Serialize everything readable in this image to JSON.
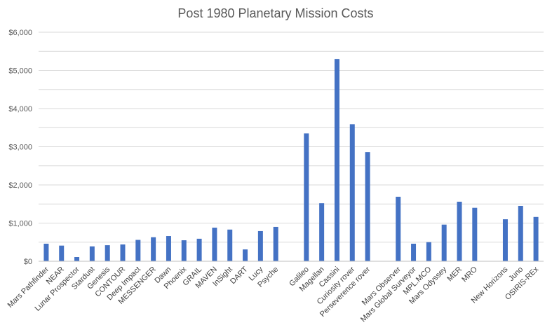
{
  "chart_data": {
    "type": "bar",
    "title": "Post 1980 Planetary Mission Costs",
    "xlabel": "",
    "ylabel": "",
    "ylim": [
      0,
      6000
    ],
    "yticks": [
      0,
      1000,
      2000,
      3000,
      4000,
      5000,
      6000
    ],
    "ytick_labels": [
      "$0",
      "$1,000",
      "$2,000",
      "$3,000",
      "$4,000",
      "$5,000",
      "$6,000"
    ],
    "grid": true,
    "legend": "none",
    "bar_color": "#4472c4",
    "categories": [
      "Mars Pathfinder",
      "NEAR",
      "Lunar Prospector",
      "Stardust",
      "Genesis",
      "CONTOUR",
      "Deep Impact",
      "MESSENGER",
      "Dawn",
      "Phoenix",
      "GRAIL",
      "MAVEN",
      "InSight",
      "DART",
      "Lucy",
      "Psyche",
      "",
      "Galileo",
      "Magellan",
      "Cassini",
      "Curiosity rover",
      "Perseverence rover",
      "",
      "Mars Observer",
      "Mars Global Surveyor",
      "MPL.MCO",
      "Mars Odyssey",
      "MER",
      "MRO",
      "",
      "New Horizons",
      "Juno",
      "OSIRIS-REx"
    ],
    "values": [
      460,
      410,
      110,
      390,
      420,
      440,
      560,
      630,
      660,
      550,
      590,
      880,
      830,
      310,
      790,
      900,
      null,
      3350,
      1520,
      5300,
      3590,
      2860,
      null,
      1690,
      460,
      500,
      960,
      1560,
      1400,
      null,
      1100,
      1450,
      1160
    ]
  }
}
